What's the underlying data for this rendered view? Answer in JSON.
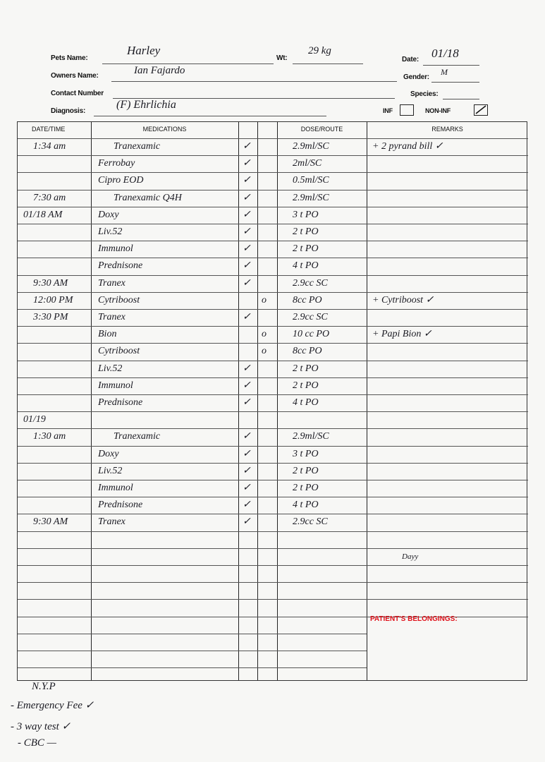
{
  "header": {
    "pets_name_label": "Pets Name:",
    "pets_name": "Harley",
    "wt_label": "Wt:",
    "wt": "29 kg",
    "date_label": "Date:",
    "date": "01/18",
    "owners_name_label": "Owners Name:",
    "owners_name": "Ian Fajardo",
    "gender_label": "Gender:",
    "gender": "M",
    "contact_label": "Contact Number",
    "contact": "",
    "species_label": "Species:",
    "species": "",
    "diagnosis_label": "Diagnosis:",
    "diagnosis": "(F) Ehrlichia",
    "inf_label": "INF",
    "inf_checked": false,
    "noninf_label": "NON-INF",
    "noninf_checked": true
  },
  "table": {
    "headers": [
      "DATE/TIME",
      "MEDICATIONS",
      "",
      "",
      "DOSE/ROUTE",
      "REMARKS"
    ],
    "rows": [
      {
        "time": "1:34 am",
        "med": "Tranexamic",
        "c1": "✓",
        "c2": "",
        "dose": "2.9ml/SC",
        "remark": "+ 2 pyrand bill ✓"
      },
      {
        "time": "",
        "med": "Ferrobay",
        "c1": "✓",
        "c2": "",
        "dose": "2ml/SC",
        "remark": ""
      },
      {
        "time": "",
        "med": "Cipro   EOD",
        "c1": "✓",
        "c2": "",
        "dose": "0.5ml/SC",
        "remark": ""
      },
      {
        "time": "7:30 am",
        "med": "Tranexamic Q4H",
        "c1": "✓",
        "c2": "",
        "dose": "2.9ml/SC",
        "remark": ""
      },
      {
        "time": "01/18 AM",
        "med": "Doxy",
        "c1": "✓",
        "c2": "",
        "dose": "3 t PO",
        "remark": ""
      },
      {
        "time": "",
        "med": "Liv.52",
        "c1": "✓",
        "c2": "",
        "dose": "2 t PO",
        "remark": ""
      },
      {
        "time": "",
        "med": "Immunol",
        "c1": "✓",
        "c2": "",
        "dose": "2 t PO",
        "remark": ""
      },
      {
        "time": "",
        "med": "Prednisone",
        "c1": "✓",
        "c2": "",
        "dose": "4 t PO",
        "remark": ""
      },
      {
        "time": "9:30 AM",
        "med": "Tranex",
        "c1": "✓",
        "c2": "",
        "dose": "2.9cc SC",
        "remark": ""
      },
      {
        "time": "12:00 PM",
        "med": "Cytriboost",
        "c1": "",
        "c2": "o",
        "dose": "8cc PO",
        "remark": "+ Cytriboost ✓"
      },
      {
        "time": "3:30 PM",
        "med": "Tranex",
        "c1": "✓",
        "c2": "",
        "dose": "2.9cc SC",
        "remark": ""
      },
      {
        "time": "",
        "med": "Bion",
        "c1": "",
        "c2": "o",
        "dose": "10 cc PO",
        "remark": "+ Papi Bion ✓"
      },
      {
        "time": "",
        "med": "Cytriboost",
        "c1": "",
        "c2": "o",
        "dose": "8cc PO",
        "remark": ""
      },
      {
        "time": "",
        "med": "Liv.52",
        "c1": "✓",
        "c2": "",
        "dose": "2 t PO",
        "remark": ""
      },
      {
        "time": "",
        "med": "Immunol",
        "c1": "✓",
        "c2": "",
        "dose": "2 t PO",
        "remark": ""
      },
      {
        "time": "",
        "med": "Prednisone",
        "c1": "✓",
        "c2": "",
        "dose": "4 t PO",
        "remark": ""
      },
      {
        "time": "01/19",
        "med": "",
        "c1": "",
        "c2": "",
        "dose": "",
        "remark": ""
      },
      {
        "time": "1:30 am",
        "med": "Tranexamic",
        "c1": "✓",
        "c2": "",
        "dose": "2.9ml/SC",
        "remark": ""
      },
      {
        "time": "",
        "med": "Doxy",
        "c1": "✓",
        "c2": "",
        "dose": "3 t PO",
        "remark": ""
      },
      {
        "time": "",
        "med": "Liv.52",
        "c1": "✓",
        "c2": "",
        "dose": "2 t PO",
        "remark": ""
      },
      {
        "time": "",
        "med": "Immunol",
        "c1": "✓",
        "c2": "",
        "dose": "2 t PO",
        "remark": ""
      },
      {
        "time": "",
        "med": "Prednisone",
        "c1": "✓",
        "c2": "",
        "dose": "4 t PO",
        "remark": ""
      },
      {
        "time": "9:30 AM",
        "med": "Tranex",
        "c1": "✓",
        "c2": "",
        "dose": "2.9cc SC",
        "remark": ""
      },
      {
        "time": "",
        "med": "",
        "c1": "",
        "c2": "",
        "dose": "",
        "remark": ""
      },
      {
        "time": "",
        "med": "",
        "c1": "",
        "c2": "",
        "dose": "",
        "remark": "Dayy"
      },
      {
        "time": "",
        "med": "",
        "c1": "",
        "c2": "",
        "dose": "",
        "remark": ""
      },
      {
        "time": "",
        "med": "",
        "c1": "",
        "c2": "",
        "dose": "",
        "remark": ""
      },
      {
        "time": "",
        "med": "",
        "c1": "",
        "c2": "",
        "dose": "",
        "remark": ""
      },
      {
        "time": "",
        "med": "",
        "c1": "",
        "c2": "",
        "dose": "",
        "remark": ""
      },
      {
        "time": "",
        "med": "",
        "c1": "",
        "c2": "",
        "dose": "",
        "remark": ""
      },
      {
        "time": "",
        "med": "",
        "c1": "",
        "c2": "",
        "dose": "",
        "remark": ""
      },
      {
        "time": "",
        "med": "",
        "c1": "",
        "c2": "",
        "dose": "",
        "remark": ""
      }
    ],
    "belongings_label": "PATIENT'S BELONGINGS:",
    "belongings_color": "#e0121b"
  },
  "notes": [
    "N.Y.P",
    "- Emergency Fee ✓",
    "- 3 way test ✓",
    "- CBC —"
  ]
}
